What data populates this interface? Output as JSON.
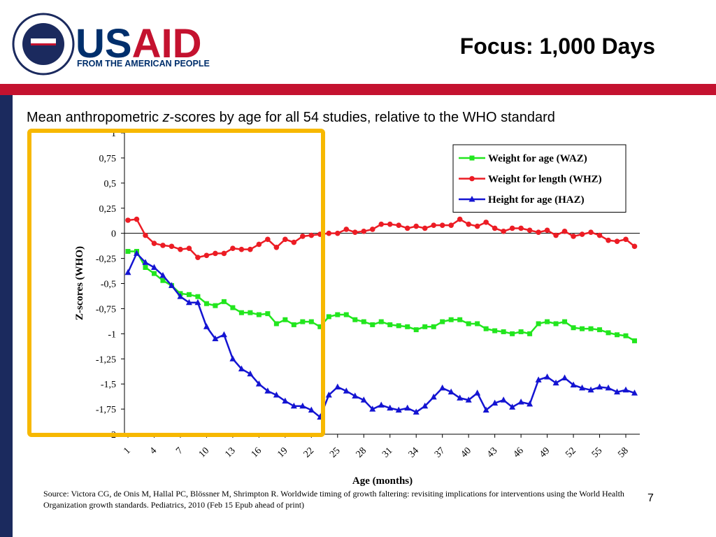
{
  "header": {
    "logo_text": [
      "US",
      "AID"
    ],
    "logo_tagline": "FROM THE AMERICAN PEOPLE",
    "title": "Focus: 1,000 Days"
  },
  "chart_data": {
    "type": "line",
    "title_parts": [
      "Mean anthropometric ",
      "z",
      "-scores by age for all 54 studies, relative to the WHO standard"
    ],
    "x_label": "Age (months)",
    "y_label": "Z-scores (WHO)",
    "x": [
      1,
      2,
      3,
      4,
      5,
      6,
      7,
      8,
      9,
      10,
      11,
      12,
      13,
      14,
      15,
      16,
      17,
      18,
      19,
      20,
      21,
      22,
      23,
      24,
      25,
      26,
      27,
      28,
      29,
      30,
      31,
      32,
      33,
      34,
      35,
      36,
      37,
      38,
      39,
      40,
      41,
      42,
      43,
      44,
      45,
      46,
      47,
      48,
      49,
      50,
      51,
      52,
      53,
      54,
      55,
      56,
      57,
      58,
      59
    ],
    "xlim": [
      0.6,
      59.6
    ],
    "xticks": [
      1,
      4,
      7,
      10,
      13,
      16,
      19,
      22,
      25,
      28,
      31,
      34,
      37,
      40,
      43,
      46,
      49,
      52,
      55,
      58
    ],
    "ylim": [
      -2,
      1
    ],
    "yticks": [
      {
        "value": -2,
        "label": "-2"
      },
      {
        "value": -1.75,
        "label": "-1,75"
      },
      {
        "value": -1.5,
        "label": "-1,5"
      },
      {
        "value": -1.25,
        "label": "-1,25"
      },
      -1,
      {
        "value": -0.75,
        "label": "-0,75"
      },
      {
        "value": -0.5,
        "label": "-0,5"
      },
      {
        "value": -0.25,
        "label": "-0,25"
      },
      0,
      {
        "value": 0.25,
        "label": "0,25"
      },
      {
        "value": 0.5,
        "label": "0,5"
      },
      {
        "value": 0.75,
        "label": "0,75"
      },
      1
    ],
    "grid": false,
    "legend": "upper right",
    "series": [
      {
        "name": "Weight for age (WAZ)",
        "color": "#22e61e",
        "marker": "square",
        "values": [
          -0.18,
          -0.18,
          -0.34,
          -0.4,
          -0.47,
          -0.52,
          -0.6,
          -0.61,
          -0.63,
          -0.7,
          -0.72,
          -0.68,
          -0.74,
          -0.79,
          -0.79,
          -0.81,
          -0.8,
          -0.9,
          -0.86,
          -0.91,
          -0.88,
          -0.88,
          -0.93,
          -0.83,
          -0.81,
          -0.81,
          -0.86,
          -0.88,
          -0.91,
          -0.88,
          -0.91,
          -0.92,
          -0.93,
          -0.96,
          -0.93,
          -0.93,
          -0.88,
          -0.86,
          -0.86,
          -0.9,
          -0.9,
          -0.95,
          -0.97,
          -0.98,
          -1.0,
          -0.98,
          -1.0,
          -0.9,
          -0.88,
          -0.9,
          -0.88,
          -0.94,
          -0.95,
          -0.95,
          -0.96,
          -0.99,
          -1.01,
          -1.02,
          -1.07
        ]
      },
      {
        "name": "Weight for length (WHZ)",
        "color": "#ec1c24",
        "marker": "circle",
        "values": [
          0.13,
          0.14,
          -0.02,
          -0.1,
          -0.12,
          -0.13,
          -0.16,
          -0.15,
          -0.24,
          -0.22,
          -0.2,
          -0.2,
          -0.15,
          -0.16,
          -0.16,
          -0.11,
          -0.06,
          -0.14,
          -0.06,
          -0.09,
          -0.03,
          -0.02,
          -0.01,
          0.0,
          0.0,
          0.04,
          0.01,
          0.02,
          0.04,
          0.09,
          0.09,
          0.08,
          0.05,
          0.07,
          0.05,
          0.08,
          0.08,
          0.08,
          0.14,
          0.09,
          0.07,
          0.11,
          0.05,
          0.02,
          0.05,
          0.05,
          0.03,
          0.01,
          0.03,
          -0.02,
          0.02,
          -0.03,
          -0.01,
          0.01,
          -0.02,
          -0.07,
          -0.08,
          -0.06,
          -0.13
        ]
      },
      {
        "name": "Height for age (HAZ)",
        "color": "#1414d2",
        "marker": "triangle",
        "values": [
          -0.39,
          -0.2,
          -0.29,
          -0.34,
          -0.42,
          -0.52,
          -0.63,
          -0.69,
          -0.69,
          -0.93,
          -1.05,
          -1.01,
          -1.25,
          -1.35,
          -1.4,
          -1.5,
          -1.57,
          -1.61,
          -1.67,
          -1.72,
          -1.72,
          -1.76,
          -1.83,
          -1.61,
          -1.53,
          -1.57,
          -1.62,
          -1.66,
          -1.75,
          -1.71,
          -1.74,
          -1.76,
          -1.74,
          -1.78,
          -1.72,
          -1.63,
          -1.54,
          -1.58,
          -1.64,
          -1.66,
          -1.59,
          -1.76,
          -1.69,
          -1.66,
          -1.73,
          -1.68,
          -1.7,
          -1.46,
          -1.43,
          -1.49,
          -1.44,
          -1.51,
          -1.54,
          -1.56,
          -1.53,
          -1.54,
          -1.58,
          -1.56,
          -1.59
        ]
      }
    ]
  },
  "footer": {
    "source": "Source: Victora CG, de Onis M, Hallal PC, Blössner M, Shrimpton R. Worldwide timing of growth faltering: revisiting implications for interventions using the World Health Organization growth standards. Pediatrics, 2010 (Feb 15 Epub ahead of print)",
    "page_number": "7"
  }
}
